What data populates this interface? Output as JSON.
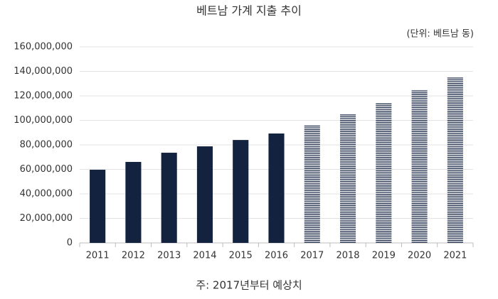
{
  "chart_data": {
    "type": "bar",
    "title": "베트남 가계 지출 추이",
    "subtitle": "(단위: 베트남 동)",
    "note": "주: 2017년부터 예상치",
    "categories": [
      "2011",
      "2012",
      "2013",
      "2014",
      "2015",
      "2016",
      "2017",
      "2018",
      "2019",
      "2020",
      "2021"
    ],
    "values": [
      59700000,
      66100000,
      73600000,
      78800000,
      84000000,
      89300000,
      96200000,
      104900000,
      114200000,
      125200000,
      135000000
    ],
    "color": "#13223f",
    "bar_fills": [
      "solid",
      "solid",
      "solid",
      "solid",
      "solid",
      "solid",
      "stripes",
      "stripes",
      "stripes",
      "stripes",
      "stripes"
    ],
    "ylim": [
      0,
      160000000
    ],
    "yticks": [
      0,
      {
        "value": 20000000,
        "label": "20,000,000"
      },
      {
        "value": 40000000,
        "label": "40,000,000"
      },
      {
        "value": 60000000,
        "label": "60,000,000"
      },
      {
        "value": 80000000,
        "label": "80,000,000"
      },
      {
        "value": 100000000,
        "label": "100,000,000"
      },
      {
        "value": 120000000,
        "label": "120,000,000"
      },
      {
        "value": 140000000,
        "label": "140,000,000"
      },
      {
        "value": 160000000,
        "label": "160,000,000"
      }
    ],
    "grid": true
  }
}
